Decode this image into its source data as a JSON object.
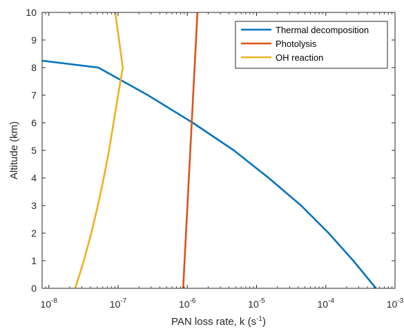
{
  "chart_data": {
    "type": "line",
    "xlabel_prefix": "PAN loss rate, k (s",
    "xlabel_exp": "-1",
    "xlabel_suffix": ")",
    "ylabel": "Altitude (km)",
    "xscale": "log",
    "xlim": [
      8e-09,
      0.001
    ],
    "ylim": [
      0,
      10
    ],
    "x_tick_values": [
      1e-08,
      1e-07,
      1e-06,
      1e-05,
      0.0001,
      0.001
    ],
    "x_ticks": [
      {
        "base": "10",
        "exp": "-8"
      },
      {
        "base": "10",
        "exp": "-7"
      },
      {
        "base": "10",
        "exp": "-6"
      },
      {
        "base": "10",
        "exp": "-5"
      },
      {
        "base": "10",
        "exp": "-4"
      },
      {
        "base": "10",
        "exp": "-3"
      }
    ],
    "y_ticks": [
      0,
      1,
      2,
      3,
      4,
      5,
      6,
      7,
      8,
      9,
      10
    ],
    "grid": false,
    "legend_position": "top-right",
    "series": [
      {
        "name": "Thermal decomposition",
        "color": "#0072BD",
        "points": [
          [
            0.00053,
            0
          ],
          [
            0.00025,
            1
          ],
          [
            0.00011,
            2
          ],
          [
            4.4e-05,
            3
          ],
          [
            1.5e-05,
            4
          ],
          [
            4.7e-06,
            5
          ],
          [
            1.2e-06,
            6
          ],
          [
            2.7e-07,
            7
          ],
          [
            5.2e-08,
            8
          ],
          [
            8e-09,
            8.25
          ]
        ]
      },
      {
        "name": "Photolysis",
        "color": "#D95319",
        "points": [
          [
            8.7e-07,
            0
          ],
          [
            1.4e-06,
            10
          ]
        ]
      },
      {
        "name": "OH reaction",
        "color": "#EDB120",
        "points": [
          [
            2.4e-08,
            0
          ],
          [
            3.2e-08,
            1
          ],
          [
            4.1e-08,
            2
          ],
          [
            5.1e-08,
            3
          ],
          [
            6.2e-08,
            4
          ],
          [
            7.4e-08,
            5
          ],
          [
            8.6e-08,
            6
          ],
          [
            1e-07,
            7
          ],
          [
            1.17e-07,
            8
          ],
          [
            9.1e-08,
            10
          ]
        ]
      }
    ]
  }
}
